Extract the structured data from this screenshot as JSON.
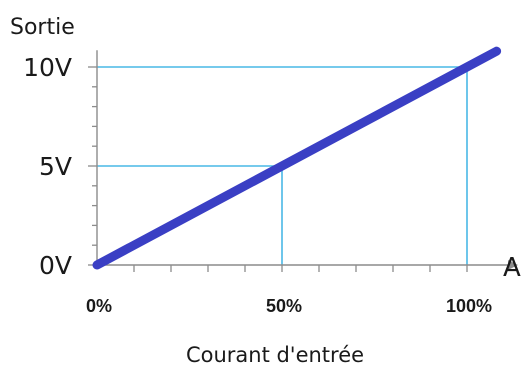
{
  "chart_data": {
    "type": "line",
    "title": "",
    "ylabel": "Sortie",
    "xlabel": "Courant d'entrée",
    "x_unit_label": "A",
    "x_ticks": [
      {
        "value": 0,
        "label": "0%"
      },
      {
        "value": 50,
        "label": "50%"
      },
      {
        "value": 100,
        "label": "100%"
      }
    ],
    "y_ticks": [
      {
        "value": 0,
        "label": "0V"
      },
      {
        "value": 5,
        "label": "5V"
      },
      {
        "value": 10,
        "label": "10V"
      }
    ],
    "xlim": [
      0,
      110
    ],
    "ylim": [
      0,
      11
    ],
    "series": [
      {
        "x": [
          0,
          50,
          100,
          108
        ],
        "y": [
          0,
          5,
          10,
          10.8
        ]
      }
    ],
    "reference_lines": [
      {
        "x": 50,
        "y": 5
      },
      {
        "x": 100,
        "y": 10
      }
    ],
    "colors": {
      "line": "#3a3fc4",
      "reference": "#49b8e6",
      "axis": "#8c8c8c"
    }
  }
}
